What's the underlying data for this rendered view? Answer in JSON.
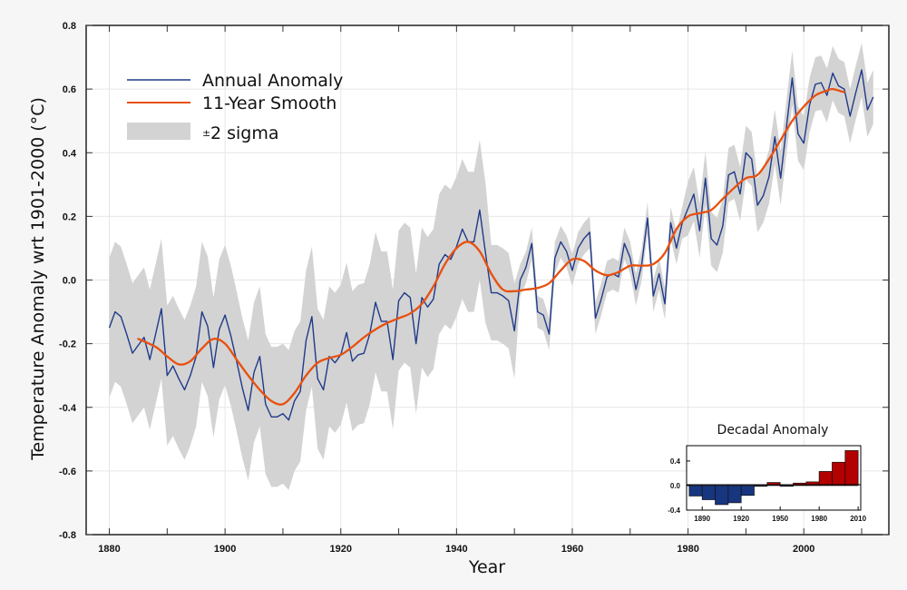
{
  "chart_data": {
    "type": "line",
    "title": "",
    "xlabel": "Year",
    "ylabel": "Temperature Anomaly wrt 1901-2000 (°C)",
    "xlim": [
      1876,
      2014.7
    ],
    "ylim": [
      -0.8,
      0.8
    ],
    "grid": true,
    "x_ticks": [
      1880,
      1890,
      1900,
      1910,
      1920,
      1930,
      1940,
      1950,
      1960,
      1970,
      1980,
      1990,
      2000,
      2010
    ],
    "x_tick_labels": [
      "1880",
      "1900",
      "1920",
      "1940",
      "1960",
      "1980",
      "2000"
    ],
    "x_tick_label_values": [
      1880,
      1900,
      1920,
      1940,
      1960,
      1980,
      2000
    ],
    "y_ticks": [
      -0.8,
      -0.6,
      -0.4,
      -0.2,
      0.0,
      0.2,
      0.4,
      0.6,
      0.8
    ],
    "y_tick_labels": [
      "-0.8",
      "-0.6",
      "-0.4",
      "-0.2",
      "0.0",
      "0.2",
      "0.4",
      "0.6",
      "0.8"
    ],
    "legend": {
      "placement": "top-left",
      "entries": [
        {
          "label": "Annual Anomaly",
          "kind": "line",
          "color": "#1f3a8a"
        },
        {
          "label": "11-Year Smooth",
          "kind": "line",
          "color": "#e8500f"
        },
        {
          "label": "2 sigma",
          "prefix": "±",
          "kind": "patch",
          "color": "#d3d3d3"
        }
      ]
    },
    "series": [
      {
        "name": "Annual Anomaly",
        "color": "#1f3a8a",
        "x_start": 1880,
        "values": [
          -0.15,
          -0.1,
          -0.115,
          -0.17,
          -0.23,
          -0.205,
          -0.18,
          -0.25,
          -0.17,
          -0.09,
          -0.3,
          -0.27,
          -0.31,
          -0.345,
          -0.3,
          -0.24,
          -0.1,
          -0.145,
          -0.275,
          -0.155,
          -0.11,
          -0.175,
          -0.255,
          -0.34,
          -0.41,
          -0.29,
          -0.24,
          -0.39,
          -0.43,
          -0.43,
          -0.42,
          -0.44,
          -0.38,
          -0.35,
          -0.19,
          -0.115,
          -0.31,
          -0.345,
          -0.24,
          -0.26,
          -0.235,
          -0.165,
          -0.255,
          -0.235,
          -0.23,
          -0.17,
          -0.07,
          -0.13,
          -0.13,
          -0.25,
          -0.065,
          -0.04,
          -0.055,
          -0.2,
          -0.055,
          -0.085,
          -0.06,
          0.05,
          0.08,
          0.065,
          0.105,
          0.16,
          0.12,
          0.12,
          0.22,
          0.085,
          -0.04,
          -0.04,
          -0.05,
          -0.065,
          -0.16,
          0.0,
          0.04,
          0.115,
          -0.1,
          -0.11,
          -0.17,
          0.07,
          0.12,
          0.09,
          0.03,
          0.1,
          0.13,
          0.15,
          -0.12,
          -0.06,
          0.01,
          0.02,
          0.01,
          0.115,
          0.07,
          -0.03,
          0.05,
          0.195,
          -0.05,
          0.02,
          -0.075,
          0.18,
          0.1,
          0.18,
          0.225,
          0.27,
          0.155,
          0.32,
          0.13,
          0.11,
          0.17,
          0.33,
          0.34,
          0.27,
          0.4,
          0.38,
          0.235,
          0.265,
          0.325,
          0.45,
          0.32,
          0.48,
          0.635,
          0.46,
          0.43,
          0.55,
          0.615,
          0.62,
          0.58,
          0.65,
          0.61,
          0.6,
          0.515,
          0.59,
          0.66,
          0.535,
          0.575
        ]
      },
      {
        "name": "11-Year Smooth",
        "color": "#e8500f",
        "x": [
          1885,
          1888,
          1890,
          1892,
          1894,
          1896,
          1898,
          1900,
          1902,
          1904,
          1906,
          1908,
          1910,
          1912,
          1914,
          1916,
          1918,
          1920,
          1922,
          1924,
          1926,
          1928,
          1930,
          1932,
          1934,
          1936,
          1938,
          1940,
          1942,
          1944,
          1946,
          1948,
          1950,
          1952,
          1954,
          1956,
          1958,
          1960,
          1962,
          1964,
          1966,
          1968,
          1970,
          1972,
          1974,
          1976,
          1978,
          1980,
          1982,
          1984,
          1986,
          1988,
          1990,
          1992,
          1994,
          1996,
          1998,
          2000,
          2002,
          2004,
          2005,
          2007
        ],
        "values": [
          -0.185,
          -0.21,
          -0.24,
          -0.265,
          -0.255,
          -0.215,
          -0.185,
          -0.2,
          -0.25,
          -0.3,
          -0.345,
          -0.38,
          -0.39,
          -0.355,
          -0.3,
          -0.26,
          -0.245,
          -0.235,
          -0.21,
          -0.18,
          -0.155,
          -0.135,
          -0.12,
          -0.105,
          -0.075,
          -0.02,
          0.05,
          0.1,
          0.12,
          0.09,
          0.02,
          -0.03,
          -0.035,
          -0.03,
          -0.025,
          -0.01,
          0.03,
          0.065,
          0.06,
          0.03,
          0.015,
          0.025,
          0.045,
          0.045,
          0.05,
          0.085,
          0.16,
          0.2,
          0.21,
          0.22,
          0.255,
          0.29,
          0.32,
          0.33,
          0.38,
          0.44,
          0.5,
          0.545,
          0.58,
          0.595,
          0.6,
          0.59
        ]
      },
      {
        "name": "±2 sigma",
        "kind": "band",
        "color": "#d3d3d3",
        "centered_on": "Annual Anomaly",
        "half_width_by_period": [
          {
            "from": 1880,
            "to": 1945,
            "half_width": 0.22
          },
          {
            "from": 1946,
            "to": 1950,
            "half_width": 0.15
          },
          {
            "from": 1951,
            "to": 1979,
            "half_width": 0.05
          },
          {
            "from": 1980,
            "to": 2012,
            "half_width": 0.085
          }
        ]
      }
    ],
    "inset": {
      "type": "bar",
      "title": "Decadal Anomaly",
      "placement": "bottom-right",
      "categories": [
        "1880s",
        "1890s",
        "1900s",
        "1910s",
        "1920s",
        "1930s",
        "1940s",
        "1950s",
        "1960s",
        "1970s",
        "1980s",
        "1990s",
        "2000s"
      ],
      "decade_start": [
        1880,
        1890,
        1900,
        1910,
        1920,
        1930,
        1940,
        1950,
        1960,
        1970,
        1980,
        1990,
        2000
      ],
      "values": [
        -0.17,
        -0.23,
        -0.31,
        -0.28,
        -0.16,
        -0.01,
        0.05,
        -0.01,
        0.04,
        0.06,
        0.23,
        0.38,
        0.57
      ],
      "ylim": [
        -0.4,
        0.65
      ],
      "y_ticks": [
        -0.4,
        0.0,
        0.4
      ],
      "y_tick_labels": [
        "-0.4",
        "0.0",
        "0.4"
      ],
      "x_tick_labels": [
        "1890",
        "1920",
        "1950",
        "1980",
        "2010"
      ],
      "x_tick_values": [
        1890,
        1920,
        1950,
        1980,
        2010
      ],
      "xlim": [
        1878,
        2012
      ],
      "negative_color": "#17367f",
      "positive_color": "#b30000"
    }
  }
}
